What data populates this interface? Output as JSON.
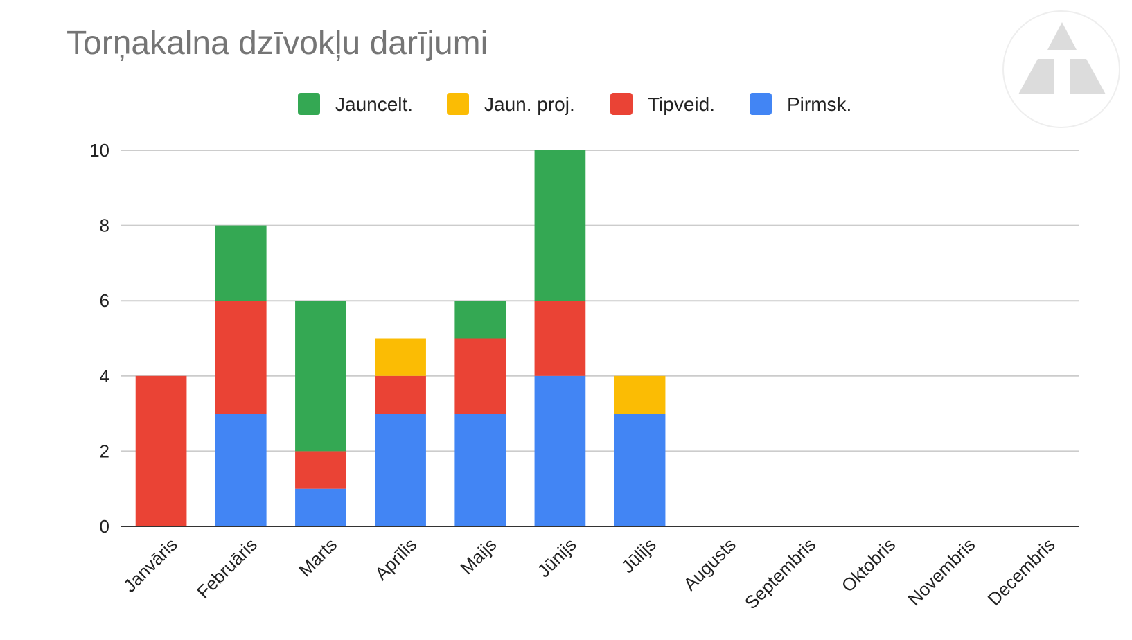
{
  "chart_data": {
    "type": "bar",
    "stacked": true,
    "title": "Torņakalna dzīvokļu darījumi",
    "categories": [
      "Janvāris",
      "Februāris",
      "Marts",
      "Aprīlis",
      "Maijs",
      "Jūnijs",
      "Jūlijs",
      "Augusts",
      "Septembris",
      "Oktobris",
      "Novembris",
      "Decembris"
    ],
    "series": [
      {
        "name": "Pirmsk.",
        "color": "#4285f4",
        "values": [
          0,
          3,
          1,
          3,
          3,
          4,
          3,
          0,
          0,
          0,
          0,
          0
        ]
      },
      {
        "name": "Tipveid.",
        "color": "#ea4335",
        "values": [
          4,
          3,
          1,
          1,
          2,
          2,
          0,
          0,
          0,
          0,
          0,
          0
        ]
      },
      {
        "name": "Jaun. proj.",
        "color": "#fbbc04",
        "values": [
          0,
          0,
          0,
          1,
          0,
          0,
          1,
          0,
          0,
          0,
          0,
          0
        ]
      },
      {
        "name": "Jauncelt.",
        "color": "#34a853",
        "values": [
          0,
          2,
          4,
          0,
          1,
          4,
          0,
          0,
          0,
          0,
          0,
          0
        ]
      }
    ],
    "legend_order": [
      "Jauncelt.",
      "Jaun. proj.",
      "Tipveid.",
      "Pirmsk."
    ],
    "legend_position": "top",
    "yticks": [
      0,
      2,
      4,
      6,
      8,
      10
    ],
    "ylim": [
      0,
      10
    ],
    "grid": true,
    "xlabel": "",
    "ylabel": ""
  },
  "logo": {
    "name": "triangle-logo",
    "color": "#d9d9d9"
  }
}
